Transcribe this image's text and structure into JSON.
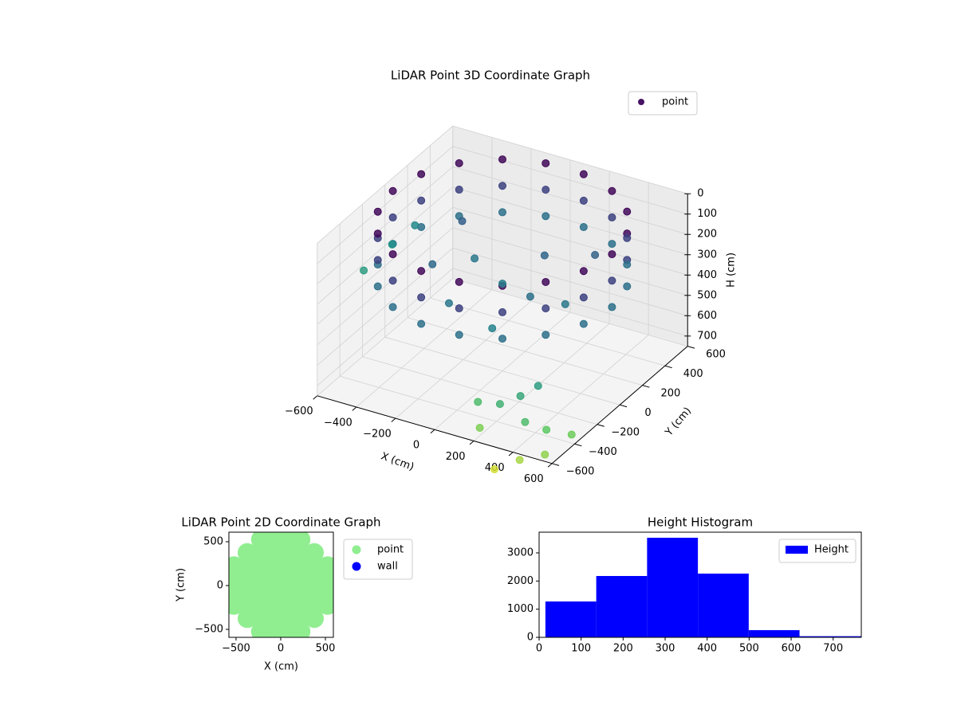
{
  "chart_data": [
    {
      "type": "scatter3d",
      "title": "LiDAR Point 3D Coordinate Graph",
      "xlabel": "X (cm)",
      "ylabel": "Y (cm)",
      "zlabel": "H (cm)",
      "xlim": [
        -600,
        600
      ],
      "ylim": [
        -600,
        600
      ],
      "zlim": [
        0,
        750
      ],
      "z_inverted": true,
      "colormap": "viridis",
      "legend": "upper right",
      "xticks": [
        {
          "value": -600,
          "label": "−600"
        },
        {
          "value": -400,
          "label": "−400"
        },
        {
          "value": -200,
          "label": "−200"
        },
        0,
        200,
        400,
        600
      ],
      "yticks": [
        {
          "value": -600,
          "label": "−600"
        },
        {
          "value": -400,
          "label": "−400"
        },
        {
          "value": -200,
          "label": "−200"
        },
        0,
        200,
        400,
        600
      ],
      "zticks": [
        0,
        100,
        200,
        300,
        400,
        500,
        600,
        700
      ],
      "series": [
        {
          "name": "point",
          "color": "#471365",
          "x": [
            560,
            560,
            560,
            526,
            526,
            526,
            429,
            429,
            429,
            280,
            280,
            280,
            97,
            97,
            97,
            -97,
            -97,
            -97,
            -280,
            -280,
            -280,
            -429,
            -429,
            -429,
            -526,
            -526,
            -526,
            -560,
            -560,
            -560,
            -526,
            -526,
            -526,
            -429,
            -429,
            -429,
            -280,
            -280,
            -280,
            -97,
            -97,
            -97,
            97,
            97,
            97,
            280,
            280,
            280,
            429,
            429,
            429,
            526,
            526,
            526,
            -200,
            100,
            0,
            200,
            -300,
            -100,
            300,
            -350,
            150,
            350,
            -650,
            -680,
            -620,
            450,
            520,
            380,
            600,
            300,
            550,
            450,
            650,
            250,
            700,
            500
          ],
          "y": [
            0,
            0,
            0,
            192,
            192,
            192,
            360,
            360,
            360,
            485,
            485,
            485,
            551,
            551,
            551,
            551,
            551,
            551,
            485,
            485,
            485,
            360,
            360,
            360,
            192,
            192,
            192,
            0,
            0,
            0,
            -192,
            -192,
            -192,
            -360,
            -360,
            -360,
            -485,
            -485,
            -485,
            -551,
            -551,
            -551,
            -551,
            -551,
            -551,
            -485,
            -485,
            -485,
            -360,
            -360,
            -360,
            -192,
            -192,
            -192,
            100,
            200,
            0,
            -100,
            -100,
            -300,
            300,
            250,
            -350,
            -50,
            150,
            -50,
            300,
            -620,
            -700,
            -680,
            -650,
            -720,
            -800,
            -850,
            -750,
            -650,
            -600,
            -550
          ],
          "z": [
            20,
            150,
            280,
            20,
            150,
            280,
            20,
            150,
            280,
            20,
            150,
            280,
            20,
            150,
            280,
            20,
            150,
            280,
            20,
            150,
            280,
            20,
            150,
            280,
            20,
            150,
            280,
            20,
            150,
            280,
            20,
            150,
            280,
            20,
            150,
            280,
            20,
            150,
            280,
            20,
            150,
            280,
            20,
            150,
            280,
            20,
            150,
            280,
            20,
            150,
            280,
            20,
            150,
            280,
            300,
            250,
            320,
            280,
            260,
            300,
            240,
            230,
            330,
            300,
            380,
            420,
            350,
            450,
            520,
            480,
            560,
            600,
            650,
            700,
            620,
            520,
            580,
            420
          ]
        }
      ]
    },
    {
      "type": "scatter",
      "title": "LiDAR Point 2D Coordinate Graph",
      "xlabel": "X (cm)",
      "ylabel": "Y (cm)",
      "xlim": [
        -580,
        589
      ],
      "ylim": [
        -591,
        609
      ],
      "legend": "outside right",
      "xticks": [
        {
          "value": -500,
          "label": "−500"
        },
        0,
        500
      ],
      "yticks": [
        {
          "value": -500,
          "label": "−500"
        },
        0,
        500
      ],
      "series": [
        {
          "name": "point",
          "color": "#90ee90",
          "x": [
            -225,
            -75,
            75,
            225,
            -375,
            -225,
            -75,
            75,
            225,
            375,
            -525,
            -375,
            -225,
            -75,
            75,
            225,
            375,
            525,
            -525,
            -375,
            -225,
            -75,
            75,
            225,
            375,
            525,
            -525,
            -375,
            -225,
            -75,
            75,
            225,
            375,
            525,
            -525,
            -375,
            -225,
            -75,
            75,
            225,
            375,
            525,
            -375,
            -225,
            -75,
            75,
            225,
            375,
            -225,
            -75,
            75,
            225
          ],
          "y": [
            525,
            525,
            525,
            525,
            375,
            375,
            375,
            375,
            375,
            375,
            225,
            225,
            225,
            225,
            225,
            225,
            225,
            225,
            75,
            75,
            75,
            75,
            75,
            75,
            75,
            75,
            -75,
            -75,
            -75,
            -75,
            -75,
            -75,
            -75,
            -75,
            -225,
            -225,
            -225,
            -225,
            -225,
            -225,
            -225,
            -225,
            -375,
            -375,
            -375,
            -375,
            -375,
            -375,
            -525,
            -525,
            -525,
            -525
          ]
        },
        {
          "name": "wall",
          "color": "#0000ff",
          "x": [],
          "y": []
        }
      ]
    },
    {
      "type": "histogram",
      "title": "Height Histogram",
      "legend": "upper right",
      "bins": [
        15,
        136,
        257,
        378,
        499,
        620,
        767
      ],
      "xlim": [
        0,
        767
      ],
      "ylim": [
        0,
        3736
      ],
      "xticks": [
        0,
        100,
        200,
        300,
        400,
        500,
        600,
        700
      ],
      "yticks": [
        0,
        1000,
        2000,
        3000
      ],
      "series": [
        {
          "name": "Height",
          "color": "#0000ff",
          "values": [
            1274,
            2179,
            3538,
            2264,
            255,
            40
          ]
        }
      ]
    }
  ]
}
